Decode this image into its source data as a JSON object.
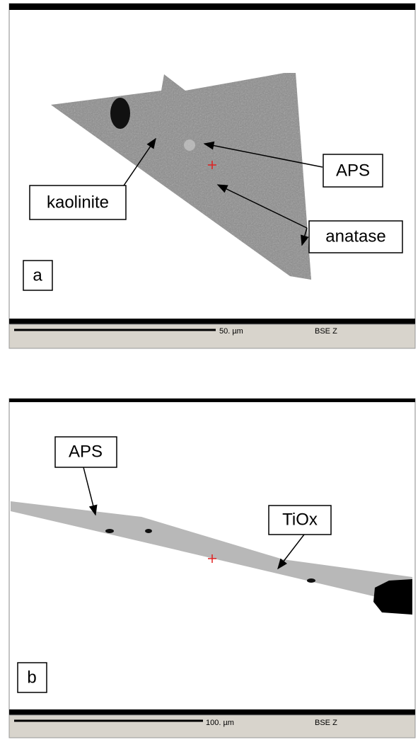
{
  "panels": [
    {
      "label": "a",
      "annotations": [
        "kaolinite",
        "APS",
        "anatase"
      ],
      "scale": "50. µm",
      "mode": "BSE Z"
    },
    {
      "label": "b",
      "annotations": [
        "APS",
        "TiOx"
      ],
      "scale": "100. µm",
      "mode": "BSE Z"
    }
  ]
}
